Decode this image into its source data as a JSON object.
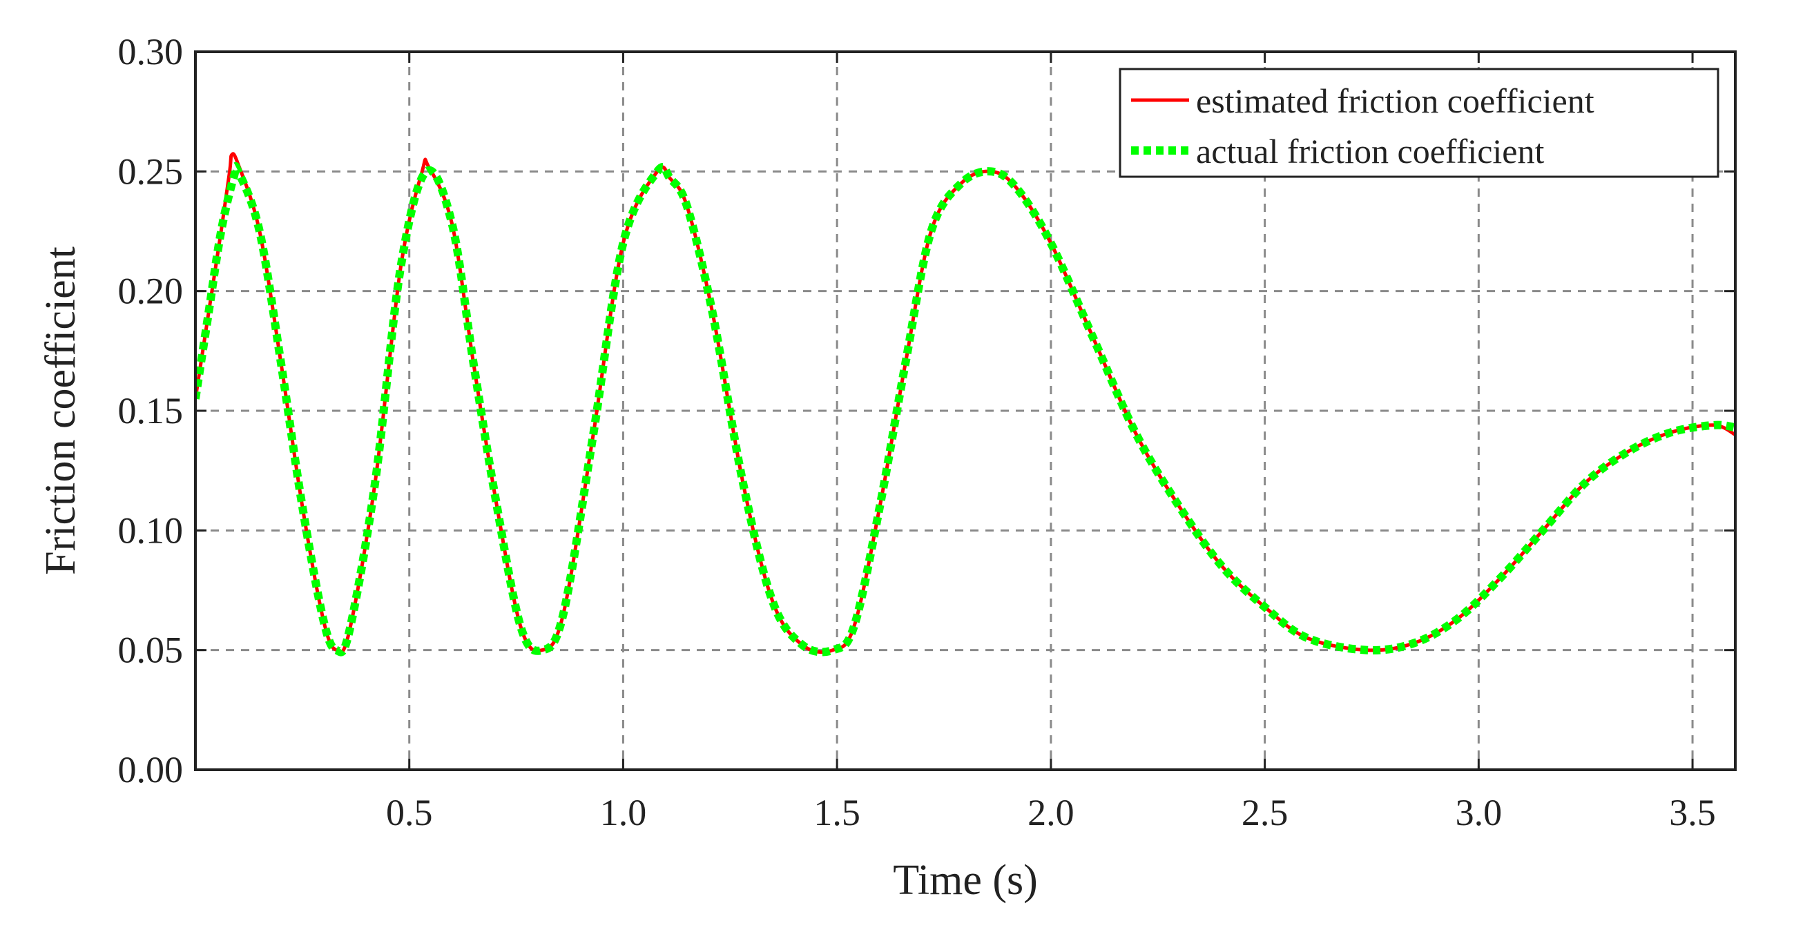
{
  "chart_data": {
    "type": "line",
    "title": "",
    "xlabel": "Time (s)",
    "ylabel": "Friction coefficient",
    "xlim": [
      0,
      3.6
    ],
    "ylim": [
      0,
      0.3
    ],
    "grid": true,
    "legend_position": "top-right",
    "x_ticks": [
      0.5,
      1.0,
      1.5,
      2.0,
      2.5,
      3.0,
      3.5
    ],
    "x_tick_labels": [
      "0.5",
      "1.0",
      "1.5",
      "2.0",
      "2.5",
      "3.0",
      "3.5"
    ],
    "y_ticks": [
      0,
      0.05,
      0.1,
      0.15,
      0.2,
      0.25,
      0.3
    ],
    "y_tick_labels": [
      "0.00",
      "0.05",
      "0.10",
      "0.15",
      "0.20",
      "0.25",
      "0.30"
    ],
    "series": [
      {
        "name": "estimated friction coefficient",
        "color": "#ff0000",
        "style": "solid",
        "points": [
          [
            0.0,
            0.155
          ],
          [
            0.03,
            0.19
          ],
          [
            0.06,
            0.225
          ],
          [
            0.08,
            0.25
          ],
          [
            0.085,
            0.257
          ],
          [
            0.1,
            0.253
          ],
          [
            0.15,
            0.225
          ],
          [
            0.2,
            0.17
          ],
          [
            0.25,
            0.11
          ],
          [
            0.3,
            0.062
          ],
          [
            0.33,
            0.05
          ],
          [
            0.36,
            0.058
          ],
          [
            0.42,
            0.12
          ],
          [
            0.48,
            0.21
          ],
          [
            0.53,
            0.25
          ],
          [
            0.545,
            0.252
          ],
          [
            0.6,
            0.228
          ],
          [
            0.65,
            0.17
          ],
          [
            0.7,
            0.115
          ],
          [
            0.76,
            0.06
          ],
          [
            0.81,
            0.05
          ],
          [
            0.86,
            0.065
          ],
          [
            0.93,
            0.14
          ],
          [
            1.0,
            0.22
          ],
          [
            1.08,
            0.25
          ],
          [
            1.11,
            0.247
          ],
          [
            1.15,
            0.235
          ],
          [
            1.21,
            0.19
          ],
          [
            1.28,
            0.12
          ],
          [
            1.35,
            0.07
          ],
          [
            1.42,
            0.052
          ],
          [
            1.49,
            0.05
          ],
          [
            1.54,
            0.06
          ],
          [
            1.6,
            0.11
          ],
          [
            1.66,
            0.17
          ],
          [
            1.72,
            0.225
          ],
          [
            1.79,
            0.245
          ],
          [
            1.86,
            0.25
          ],
          [
            1.92,
            0.243
          ],
          [
            2.0,
            0.22
          ],
          [
            2.1,
            0.18
          ],
          [
            2.2,
            0.14
          ],
          [
            2.3,
            0.11
          ],
          [
            2.4,
            0.085
          ],
          [
            2.5,
            0.068
          ],
          [
            2.6,
            0.055
          ],
          [
            2.74,
            0.05
          ],
          [
            2.85,
            0.053
          ],
          [
            2.95,
            0.063
          ],
          [
            3.05,
            0.08
          ],
          [
            3.15,
            0.1
          ],
          [
            3.25,
            0.12
          ],
          [
            3.35,
            0.133
          ],
          [
            3.45,
            0.141
          ],
          [
            3.55,
            0.144
          ],
          [
            3.6,
            0.14
          ]
        ]
      },
      {
        "name": "actual friction coefficient",
        "color": "#00ff00",
        "style": "dotted",
        "points": [
          [
            0.0,
            0.155
          ],
          [
            0.03,
            0.19
          ],
          [
            0.06,
            0.225
          ],
          [
            0.09,
            0.248
          ],
          [
            0.1,
            0.25
          ],
          [
            0.15,
            0.225
          ],
          [
            0.2,
            0.17
          ],
          [
            0.25,
            0.11
          ],
          [
            0.3,
            0.062
          ],
          [
            0.33,
            0.05
          ],
          [
            0.36,
            0.058
          ],
          [
            0.42,
            0.12
          ],
          [
            0.48,
            0.21
          ],
          [
            0.54,
            0.25
          ],
          [
            0.6,
            0.228
          ],
          [
            0.65,
            0.17
          ],
          [
            0.7,
            0.115
          ],
          [
            0.76,
            0.06
          ],
          [
            0.81,
            0.05
          ],
          [
            0.86,
            0.065
          ],
          [
            0.93,
            0.14
          ],
          [
            1.0,
            0.22
          ],
          [
            1.08,
            0.25
          ],
          [
            1.11,
            0.247
          ],
          [
            1.15,
            0.235
          ],
          [
            1.21,
            0.19
          ],
          [
            1.28,
            0.12
          ],
          [
            1.35,
            0.07
          ],
          [
            1.42,
            0.052
          ],
          [
            1.49,
            0.05
          ],
          [
            1.54,
            0.06
          ],
          [
            1.6,
            0.11
          ],
          [
            1.66,
            0.17
          ],
          [
            1.72,
            0.225
          ],
          [
            1.79,
            0.245
          ],
          [
            1.86,
            0.25
          ],
          [
            1.92,
            0.243
          ],
          [
            2.0,
            0.22
          ],
          [
            2.1,
            0.18
          ],
          [
            2.2,
            0.14
          ],
          [
            2.3,
            0.11
          ],
          [
            2.4,
            0.085
          ],
          [
            2.5,
            0.068
          ],
          [
            2.6,
            0.055
          ],
          [
            2.74,
            0.05
          ],
          [
            2.85,
            0.053
          ],
          [
            2.95,
            0.063
          ],
          [
            3.05,
            0.08
          ],
          [
            3.15,
            0.1
          ],
          [
            3.25,
            0.12
          ],
          [
            3.35,
            0.133
          ],
          [
            3.45,
            0.141
          ],
          [
            3.55,
            0.144
          ],
          [
            3.6,
            0.143
          ]
        ]
      }
    ]
  }
}
